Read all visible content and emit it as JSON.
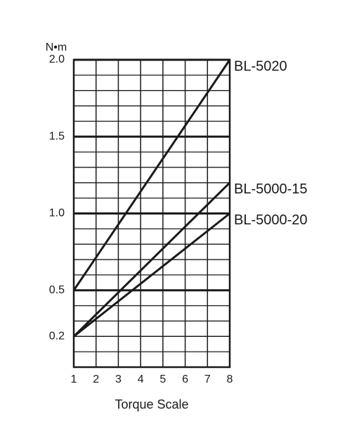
{
  "chart_data": {
    "type": "line",
    "y_unit": "N•m",
    "x_label": "Torque Scale",
    "x": [
      1,
      8
    ],
    "series": [
      {
        "name": "BL-5020",
        "color": "#1a1a1a",
        "values": [
          0.5,
          2.0
        ]
      },
      {
        "name": "BL-5000-15",
        "color": "#1a1a1a",
        "values": [
          0.2,
          1.2
        ]
      },
      {
        "name": "BL-5000-20",
        "color": "#1a1a1a",
        "values": [
          0.2,
          1.0
        ]
      }
    ],
    "xlim": [
      1,
      8
    ],
    "xticks": [
      1,
      2,
      3,
      4,
      5,
      6,
      7,
      8
    ],
    "ylim": [
      0,
      2
    ],
    "yticks": [
      0.2,
      0.5,
      {
        "value": 1,
        "label": "1.0"
      },
      1.5,
      {
        "value": 2,
        "label": "2.0"
      }
    ],
    "grid": true
  }
}
